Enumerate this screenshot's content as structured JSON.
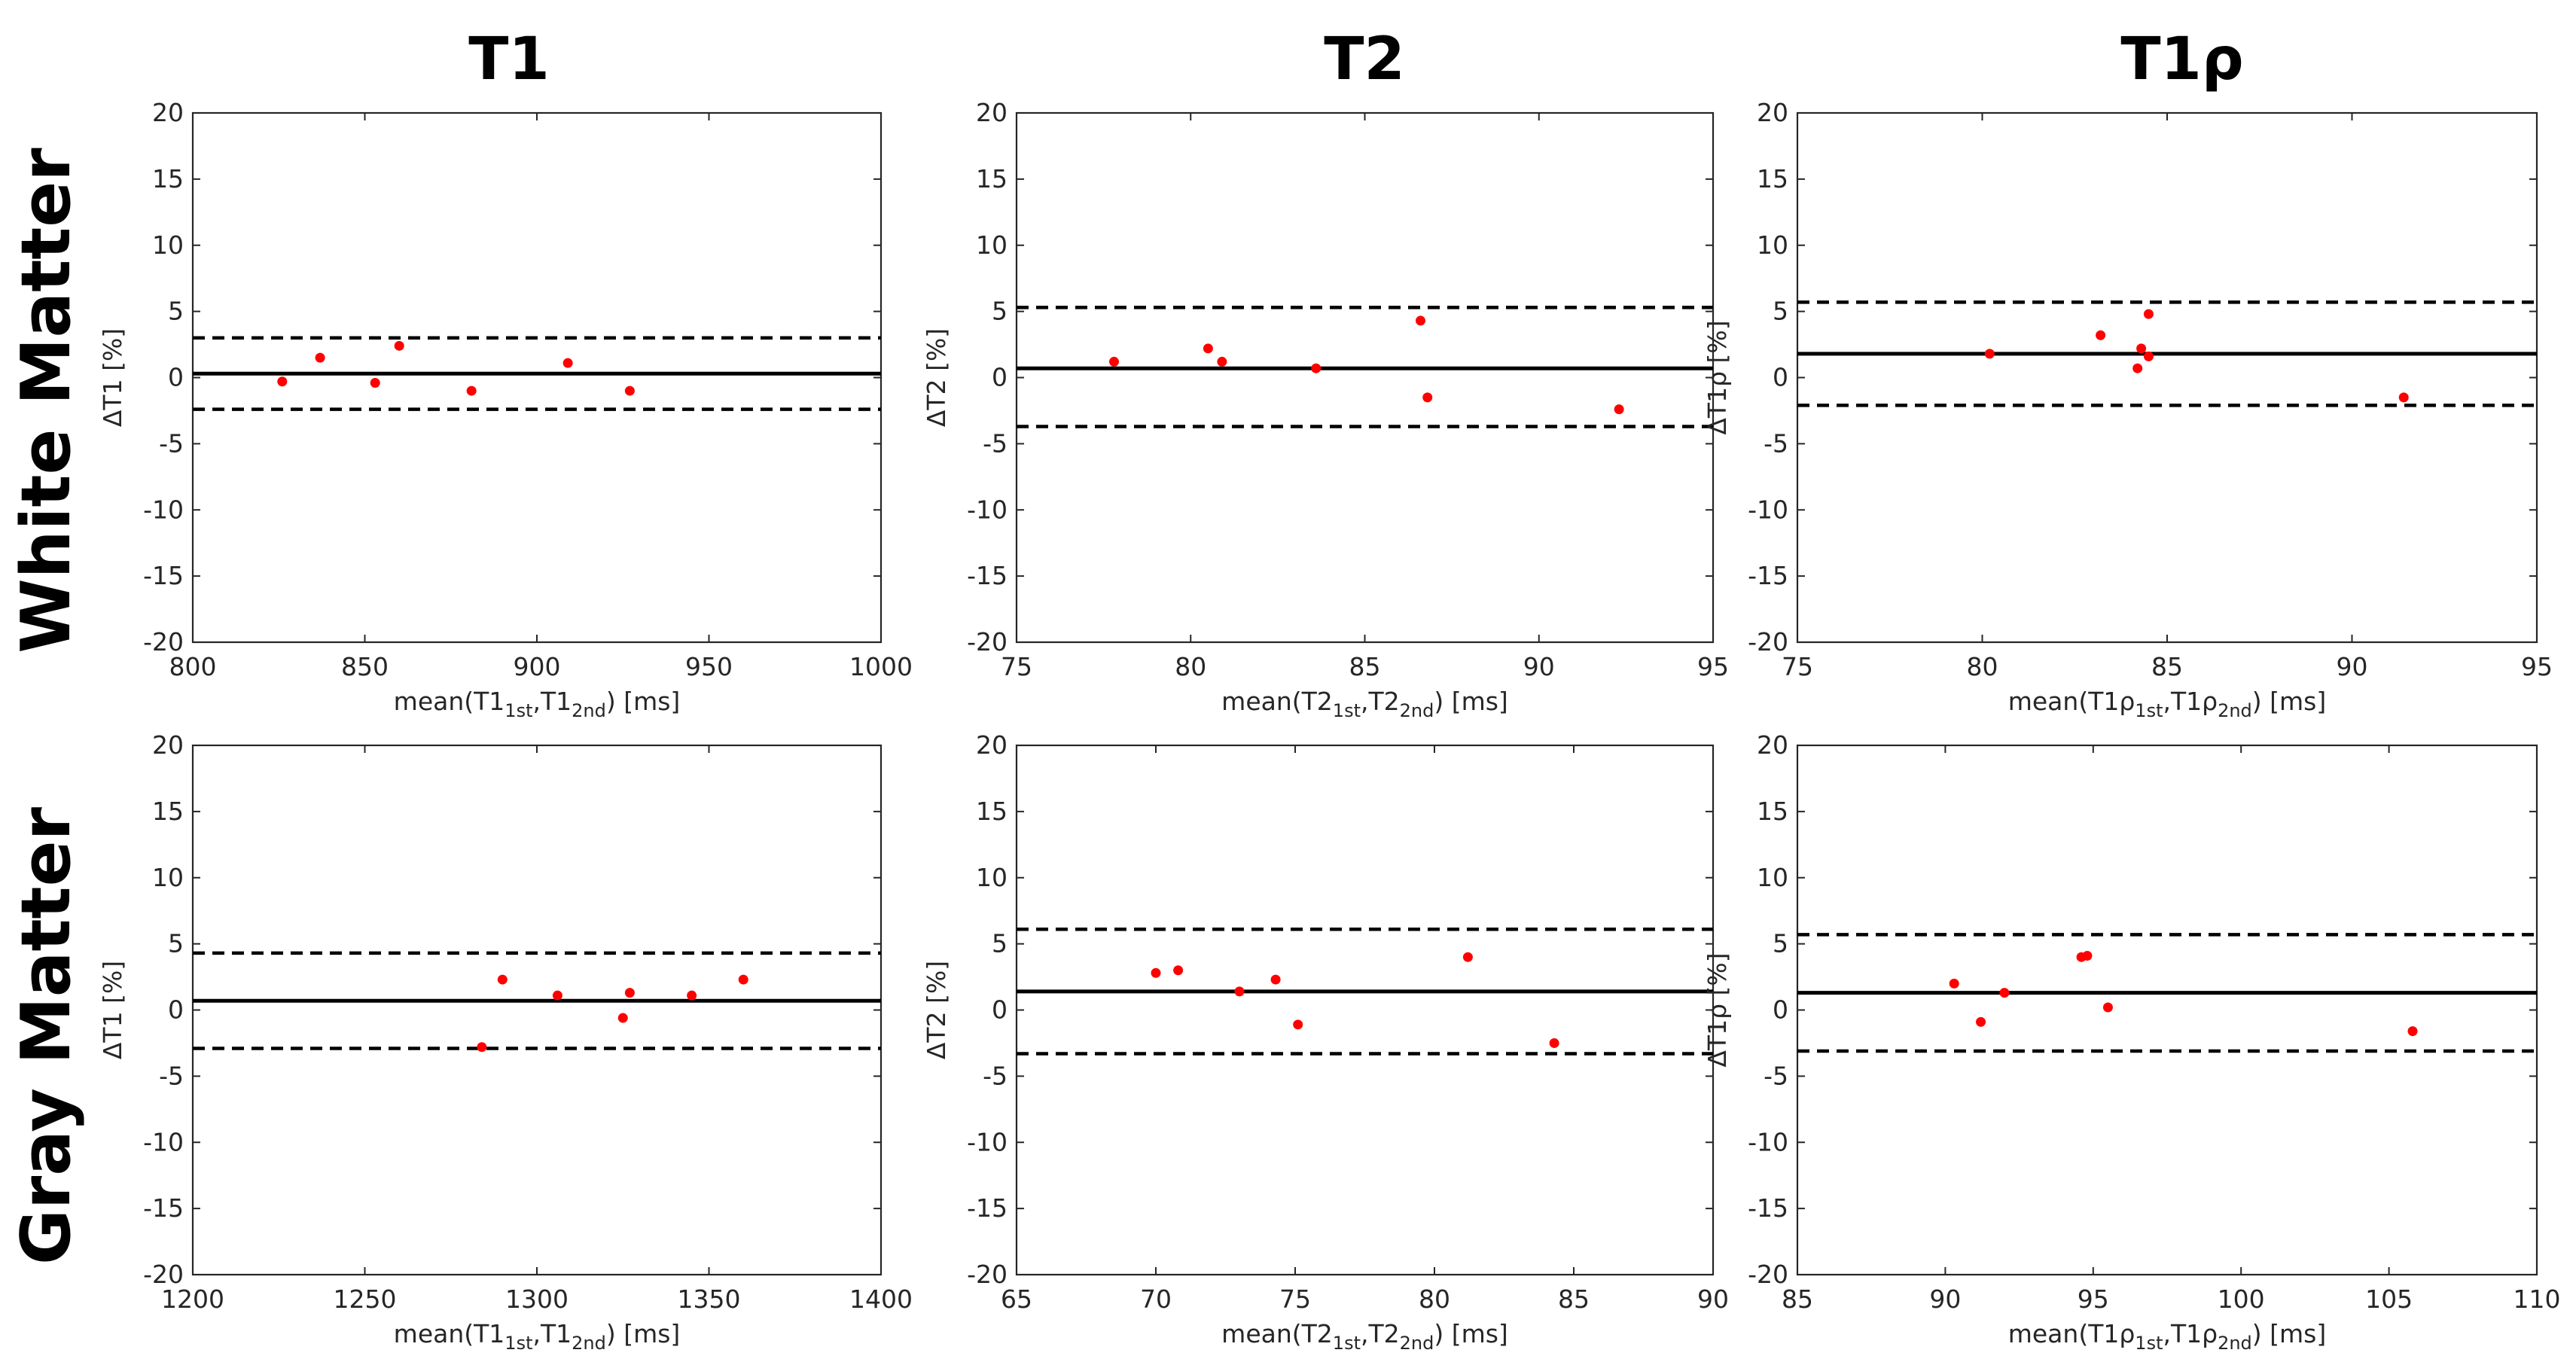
{
  "column_titles": [
    "T1",
    "T2",
    "T1ρ"
  ],
  "row_titles": [
    "White Matter",
    "Gray Matter"
  ],
  "chart_data": [
    {
      "type": "scatter",
      "title": "",
      "xlabel": {
        "pre": "mean(T1",
        "sub1": "1st",
        "mid": ",T1",
        "sub2": "2nd",
        "post": ") [ms]"
      },
      "ylabel": {
        "delta": "Δ",
        "text": "T1 [%]"
      },
      "xlim": [
        800,
        1000
      ],
      "xticks": [
        800,
        850,
        900,
        950,
        1000
      ],
      "ylim": [
        -20,
        20
      ],
      "yticks": [
        -20,
        -15,
        -10,
        -5,
        0,
        5,
        10,
        15,
        20
      ],
      "mean_line": 0.3,
      "loa_upper": 3.0,
      "loa_lower": -2.4,
      "points": [
        [
          826,
          -0.3
        ],
        [
          837,
          1.5
        ],
        [
          853,
          -0.4
        ],
        [
          860,
          2.4
        ],
        [
          881,
          -1.0
        ],
        [
          909,
          1.1
        ],
        [
          927,
          -1.0
        ]
      ],
      "point_color": "#ff0000",
      "line_color": "#000000"
    },
    {
      "type": "scatter",
      "title": "",
      "xlabel": {
        "pre": "mean(T2",
        "sub1": "1st",
        "mid": ",T2",
        "sub2": "2nd",
        "post": ") [ms]"
      },
      "ylabel": {
        "delta": "Δ",
        "text": "T2 [%]"
      },
      "xlim": [
        75,
        95
      ],
      "xticks": [
        75,
        80,
        85,
        90,
        95
      ],
      "ylim": [
        -20,
        20
      ],
      "yticks": [
        -20,
        -15,
        -10,
        -5,
        0,
        5,
        10,
        15,
        20
      ],
      "mean_line": 0.7,
      "loa_upper": 5.3,
      "loa_lower": -3.7,
      "points": [
        [
          77.8,
          1.2
        ],
        [
          80.5,
          2.2
        ],
        [
          80.9,
          1.2
        ],
        [
          83.6,
          0.7
        ],
        [
          86.6,
          4.3
        ],
        [
          86.8,
          -1.5
        ],
        [
          92.3,
          -2.4
        ]
      ],
      "point_color": "#ff0000",
      "line_color": "#000000"
    },
    {
      "type": "scatter",
      "title": "",
      "xlabel": {
        "pre": "mean(T1ρ",
        "sub1": "1st",
        "mid": ",T1ρ",
        "sub2": "2nd",
        "post": ") [ms]"
      },
      "ylabel": {
        "delta": "Δ",
        "text": "T1ρ [%]"
      },
      "xlim": [
        75,
        95
      ],
      "xticks": [
        75,
        80,
        85,
        90,
        95
      ],
      "ylim": [
        -20,
        20
      ],
      "yticks": [
        -20,
        -15,
        -10,
        -5,
        0,
        5,
        10,
        15,
        20
      ],
      "mean_line": 1.8,
      "loa_upper": 5.7,
      "loa_lower": -2.1,
      "points": [
        [
          80.2,
          1.8
        ],
        [
          83.2,
          3.2
        ],
        [
          84.2,
          0.7
        ],
        [
          84.3,
          2.2
        ],
        [
          84.5,
          1.6
        ],
        [
          84.5,
          4.8
        ],
        [
          91.4,
          -1.5
        ]
      ],
      "point_color": "#ff0000",
      "line_color": "#000000"
    },
    {
      "type": "scatter",
      "title": "",
      "xlabel": {
        "pre": "mean(T1",
        "sub1": "1st",
        "mid": ",T1",
        "sub2": "2nd",
        "post": ") [ms]"
      },
      "ylabel": {
        "delta": "Δ",
        "text": "T1 [%]"
      },
      "xlim": [
        1200,
        1400
      ],
      "xticks": [
        1200,
        1250,
        1300,
        1350,
        1400
      ],
      "ylim": [
        -20,
        20
      ],
      "yticks": [
        -20,
        -15,
        -10,
        -5,
        0,
        5,
        10,
        15,
        20
      ],
      "mean_line": 0.7,
      "loa_upper": 4.3,
      "loa_lower": -2.9,
      "points": [
        [
          1284,
          -2.8
        ],
        [
          1290,
          2.3
        ],
        [
          1306,
          1.1
        ],
        [
          1325,
          -0.6
        ],
        [
          1327,
          1.3
        ],
        [
          1345,
          1.1
        ],
        [
          1360,
          2.3
        ]
      ],
      "point_color": "#ff0000",
      "line_color": "#000000"
    },
    {
      "type": "scatter",
      "title": "",
      "xlabel": {
        "pre": "mean(T2",
        "sub1": "1st",
        "mid": ",T2",
        "sub2": "2nd",
        "post": ") [ms]"
      },
      "ylabel": {
        "delta": "Δ",
        "text": "T2 [%]"
      },
      "xlim": [
        65,
        90
      ],
      "xticks": [
        65,
        70,
        75,
        80,
        85,
        90
      ],
      "ylim": [
        -20,
        20
      ],
      "yticks": [
        -20,
        -15,
        -10,
        -5,
        0,
        5,
        10,
        15,
        20
      ],
      "mean_line": 1.4,
      "loa_upper": 6.1,
      "loa_lower": -3.3,
      "points": [
        [
          70.0,
          2.8
        ],
        [
          70.8,
          3.0
        ],
        [
          73.0,
          1.4
        ],
        [
          74.3,
          2.3
        ],
        [
          75.1,
          -1.1
        ],
        [
          81.2,
          4.0
        ],
        [
          84.3,
          -2.5
        ]
      ],
      "point_color": "#ff0000",
      "line_color": "#000000"
    },
    {
      "type": "scatter",
      "title": "",
      "xlabel": {
        "pre": "mean(T1ρ",
        "sub1": "1st",
        "mid": ",T1ρ",
        "sub2": "2nd",
        "post": ") [ms]"
      },
      "ylabel": {
        "delta": "Δ",
        "text": "T1ρ [%]"
      },
      "xlim": [
        85,
        110
      ],
      "xticks": [
        85,
        90,
        95,
        100,
        105,
        110
      ],
      "ylim": [
        -20,
        20
      ],
      "yticks": [
        -20,
        -15,
        -10,
        -5,
        0,
        5,
        10,
        15,
        20
      ],
      "mean_line": 1.3,
      "loa_upper": 5.7,
      "loa_lower": -3.1,
      "points": [
        [
          90.3,
          2.0
        ],
        [
          91.2,
          -0.9
        ],
        [
          92.0,
          1.3
        ],
        [
          94.6,
          4.0
        ],
        [
          94.8,
          4.1
        ],
        [
          95.5,
          0.2
        ],
        [
          105.8,
          -1.6
        ]
      ],
      "point_color": "#ff0000",
      "line_color": "#000000"
    }
  ]
}
